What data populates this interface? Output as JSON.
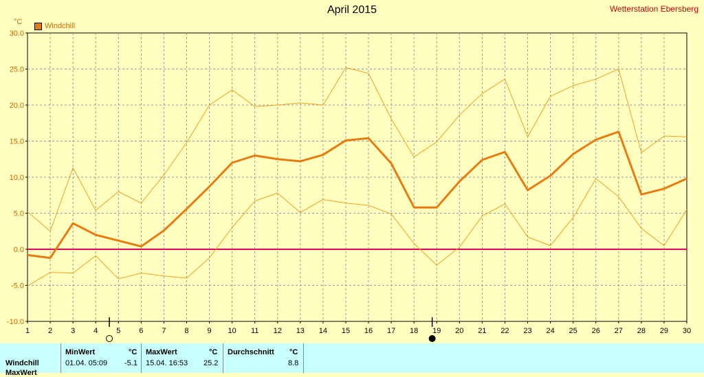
{
  "title": "April 2015",
  "station": "Wetterstation Ebersberg",
  "unit": "°C",
  "legend_label": "Windchill",
  "colors": {
    "main": "#e87b10",
    "band": "#f0a020",
    "zero": "#e0005a",
    "bg": "#ffffc0",
    "grid": "#999999"
  },
  "moon_markers": [
    {
      "day": 4.6,
      "icon": "full-moon-icon"
    },
    {
      "day": 18.8,
      "icon": "new-moon-icon"
    }
  ],
  "chart_data": {
    "type": "line",
    "title": "April 2015",
    "ylabel": "°C",
    "x": [
      1,
      2,
      3,
      4,
      5,
      6,
      7,
      8,
      9,
      10,
      11,
      12,
      13,
      14,
      15,
      16,
      17,
      18,
      19,
      20,
      21,
      22,
      23,
      24,
      25,
      26,
      27,
      28,
      29,
      30
    ],
    "xticks": [
      "1",
      "2",
      "3",
      "4",
      "5",
      "6",
      "7",
      "8",
      "9",
      "10",
      "11",
      "12",
      "13",
      "14",
      "15",
      "16",
      "17",
      "18",
      "19",
      "20",
      "21",
      "22",
      "23",
      "24",
      "25",
      "26",
      "27",
      "28",
      "29",
      "30"
    ],
    "ylim": [
      -10,
      30
    ],
    "yticks": [
      "-10.0",
      "-5.0",
      "0.0",
      "5.0",
      "10.0",
      "15.0",
      "20.0",
      "25.0",
      "30.0"
    ],
    "grid": true,
    "legend_position": "top-left",
    "series": [
      {
        "name": "Windchill",
        "role": "mean",
        "values": [
          -0.8,
          -1.2,
          3.6,
          2.0,
          1.2,
          0.4,
          2.6,
          5.6,
          8.7,
          12.0,
          13.0,
          12.5,
          12.2,
          13.1,
          15.1,
          15.4,
          11.9,
          5.8,
          5.8,
          9.4,
          12.4,
          13.5,
          8.2,
          10.2,
          13.2,
          15.2,
          16.3,
          7.6,
          8.4,
          9.8
        ]
      },
      {
        "role": "max",
        "values": [
          5.2,
          2.5,
          11.3,
          5.4,
          8.0,
          6.4,
          10.3,
          14.8,
          20.0,
          22.1,
          19.8,
          20.0,
          20.3,
          20.0,
          25.2,
          24.4,
          18.1,
          12.8,
          14.9,
          18.6,
          21.6,
          23.6,
          15.6,
          21.2,
          22.7,
          23.6,
          25.0,
          13.4,
          15.7,
          15.6
        ]
      },
      {
        "role": "min",
        "values": [
          -5.1,
          -3.2,
          -3.3,
          -0.9,
          -4.1,
          -3.3,
          -3.7,
          -4.0,
          -1.2,
          3.0,
          6.7,
          7.8,
          5.1,
          6.9,
          6.4,
          6.1,
          4.9,
          0.8,
          -2.2,
          0.3,
          4.6,
          6.3,
          1.7,
          0.5,
          4.4,
          9.8,
          7.3,
          2.9,
          0.5,
          5.5
        ]
      }
    ]
  },
  "stats": {
    "row_label": "Windchill",
    "row2_label": "MaxWert",
    "min": {
      "header": "MinWert",
      "unit": "°C",
      "date": "01.04.  05:09",
      "value": "-5.1"
    },
    "max": {
      "header": "MaxWert",
      "unit": "°C",
      "date": "15.04.  16:53",
      "value": "25.2"
    },
    "avg": {
      "header": "Durchschnitt",
      "unit": "°C",
      "value": "8.8"
    }
  }
}
